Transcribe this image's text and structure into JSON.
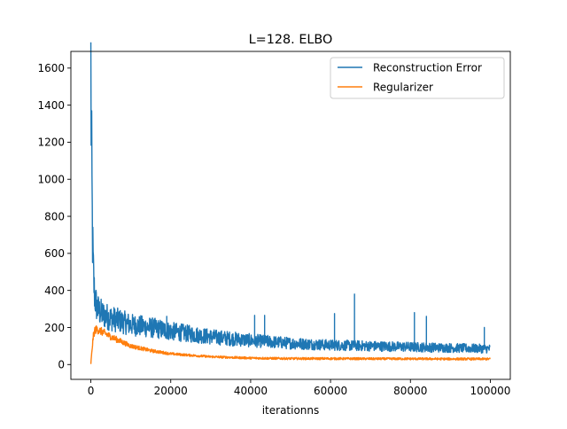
{
  "chart_data": {
    "type": "line",
    "title": "L=128. ELBO",
    "xlabel": "iterationns",
    "ylabel": "",
    "xlim": [
      -5000,
      105000
    ],
    "ylim": [
      -80,
      1690
    ],
    "xticks": [
      0,
      20000,
      40000,
      60000,
      80000,
      100000
    ],
    "xtick_labels": [
      "0",
      "20000",
      "40000",
      "60000",
      "80000",
      "100000"
    ],
    "yticks": [
      0,
      200,
      400,
      600,
      800,
      1000,
      1200,
      1400,
      1600
    ],
    "ytick_labels": [
      "0",
      "200",
      "400",
      "600",
      "800",
      "1000",
      "1200",
      "1400",
      "1600"
    ],
    "grid": false,
    "legend_position": "upper right",
    "series": [
      {
        "name": "Reconstruction Error",
        "color": "#1f77b4",
        "x": [
          0,
          100,
          200,
          300,
          400,
          600,
          800,
          1000,
          1500,
          2000,
          3000,
          5000,
          8000,
          10000,
          15000,
          20000,
          30000,
          40000,
          50000,
          60000,
          70000,
          80000,
          90000,
          100000
        ],
        "y": [
          1600,
          1220,
          1100,
          900,
          700,
          520,
          420,
          360,
          310,
          290,
          270,
          250,
          230,
          215,
          200,
          180,
          150,
          130,
          115,
          105,
          100,
          95,
          90,
          85
        ],
        "spikes": [
          {
            "x": 19000,
            "y": 260
          },
          {
            "x": 41000,
            "y": 265
          },
          {
            "x": 43500,
            "y": 265
          },
          {
            "x": 61000,
            "y": 275
          },
          {
            "x": 66000,
            "y": 380
          },
          {
            "x": 81000,
            "y": 280
          },
          {
            "x": 84000,
            "y": 260
          },
          {
            "x": 98500,
            "y": 200
          }
        ]
      },
      {
        "name": "Regularizer",
        "color": "#ff7f0e",
        "x": [
          0,
          300,
          600,
          1000,
          1500,
          2000,
          3000,
          5000,
          8000,
          10000,
          15000,
          20000,
          30000,
          40000,
          50000,
          60000,
          70000,
          80000,
          90000,
          100000
        ],
        "y": [
          5,
          80,
          150,
          185,
          190,
          185,
          175,
          150,
          120,
          100,
          75,
          58,
          42,
          35,
          32,
          32,
          31,
          31,
          30,
          30
        ]
      }
    ]
  }
}
